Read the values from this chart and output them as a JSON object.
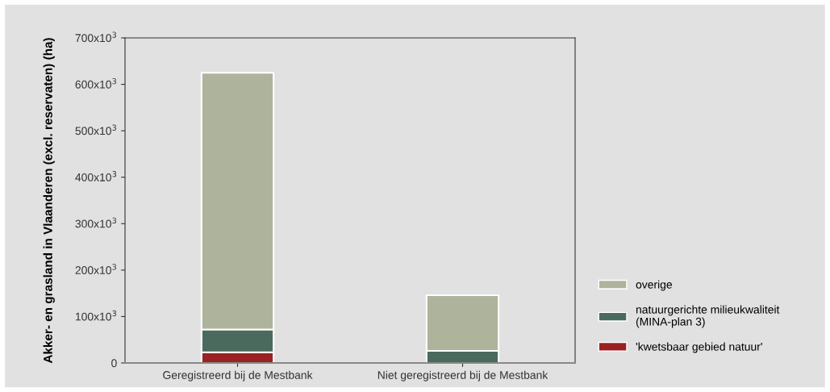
{
  "chart_data": {
    "type": "bar",
    "stacked": true,
    "ylabel": "Akker- en grasland in Vlaanderen (excl. reservaten) (ha)",
    "categories": [
      "Geregistreerd bij de Mestbank",
      "Niet geregistreerd bij de Mestbank"
    ],
    "series": [
      {
        "name": "'kwetsbaar gebied natuur'",
        "color": "#9a2222",
        "values": [
          23000,
          null
        ]
      },
      {
        "name": "natuurgerichte milieukwaliteit\n(MINA-plan 3)",
        "color": "#4b6a5e",
        "values": [
          49000,
          26000
        ]
      },
      {
        "name": "overige",
        "color": "#aeb49c",
        "values": [
          553000,
          120000
        ]
      }
    ],
    "ylim": [
      0,
      700000
    ],
    "yticks": [
      0,
      {
        "value": 100000,
        "label": "100x10$^{3}$"
      },
      {
        "value": 200000,
        "label": "200x10$^{3}$"
      },
      {
        "value": 300000,
        "label": "300x10$^{3}$"
      },
      {
        "value": 400000,
        "label": "400x10$^{3}$"
      },
      {
        "value": 500000,
        "label": "500x10$^{3}$"
      },
      {
        "value": 600000,
        "label": "600x10$^{3}$"
      },
      {
        "value": 700000,
        "label": "700x10$^{3}$"
      }
    ],
    "grid": false,
    "legend": "bottom right"
  }
}
